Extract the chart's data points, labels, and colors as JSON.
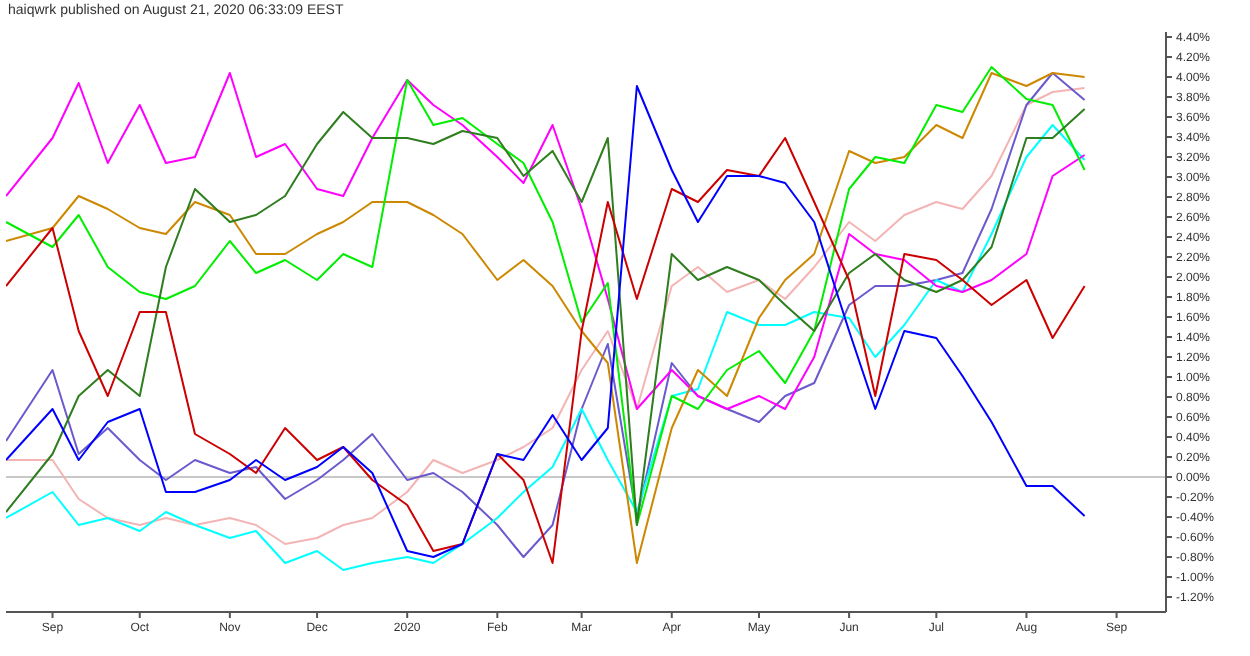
{
  "chart_data": {
    "type": "line",
    "title": "haiqwrk published on August 21, 2020 06:33:09 EEST",
    "x": [
      "2019-08-16",
      "2019-09-01",
      "2019-09-10",
      "2019-09-20",
      "2019-10-01",
      "2019-10-10",
      "2019-10-20",
      "2019-11-01",
      "2019-11-10",
      "2019-11-20",
      "2019-12-01",
      "2019-12-10",
      "2019-12-20",
      "2020-01-01",
      "2020-01-10",
      "2020-01-20",
      "2020-02-01",
      "2020-02-10",
      "2020-02-20",
      "2020-03-01",
      "2020-03-10",
      "2020-03-20",
      "2020-04-01",
      "2020-04-10",
      "2020-04-20",
      "2020-05-01",
      "2020-05-10",
      "2020-05-20",
      "2020-06-01",
      "2020-06-10",
      "2020-06-20",
      "2020-07-01",
      "2020-07-10",
      "2020-07-20",
      "2020-08-01",
      "2020-08-10",
      "2020-08-21"
    ],
    "series": [
      {
        "color": "#f4b4b4",
        "values": [
          0.17,
          0.17,
          -0.22,
          -0.41,
          -0.48,
          -0.41,
          -0.48,
          -0.41,
          -0.48,
          -0.67,
          -0.61,
          -0.48,
          -0.41,
          -0.15,
          0.17,
          0.04,
          0.17,
          0.3,
          0.49,
          1.07,
          1.46,
          0.68,
          1.91,
          2.1,
          1.85,
          1.97,
          1.78,
          2.1,
          2.55,
          2.36,
          2.62,
          2.75,
          2.68,
          3.01,
          3.72,
          3.85,
          3.89
        ]
      },
      {
        "color": "#6a5acd",
        "values": [
          0.36,
          1.07,
          0.23,
          0.49,
          0.17,
          -0.03,
          0.17,
          0.04,
          0.1,
          -0.22,
          -0.03,
          0.17,
          0.43,
          -0.03,
          0.04,
          -0.15,
          -0.48,
          -0.8,
          -0.48,
          0.68,
          1.33,
          -0.41,
          1.14,
          0.81,
          0.68,
          0.55,
          0.81,
          0.94,
          1.72,
          1.91,
          1.91,
          1.97,
          2.04,
          2.68,
          3.72,
          4.04,
          3.77
        ]
      },
      {
        "color": "#00ffff",
        "values": [
          -0.41,
          -0.15,
          -0.48,
          -0.41,
          -0.54,
          -0.35,
          -0.48,
          -0.61,
          -0.54,
          -0.86,
          -0.74,
          -0.93,
          -0.86,
          -0.8,
          -0.86,
          -0.67,
          -0.41,
          -0.15,
          0.1,
          0.68,
          0.17,
          -0.35,
          0.81,
          0.88,
          1.65,
          1.52,
          1.52,
          1.65,
          1.59,
          1.2,
          1.52,
          1.97,
          1.85,
          2.43,
          3.2,
          3.52,
          3.17
        ]
      },
      {
        "color": "#ff00ff",
        "values": [
          2.81,
          3.39,
          3.94,
          3.14,
          3.72,
          3.14,
          3.2,
          4.04,
          3.2,
          3.33,
          2.88,
          2.81,
          3.39,
          3.97,
          3.72,
          3.52,
          3.2,
          2.94,
          3.52,
          2.68,
          1.78,
          0.68,
          1.07,
          0.81,
          0.68,
          0.81,
          0.68,
          1.2,
          2.43,
          2.23,
          2.17,
          1.91,
          1.85,
          1.97,
          2.23,
          3.01,
          3.22
        ]
      },
      {
        "color": "#cc8800",
        "values": [
          2.36,
          2.49,
          2.81,
          2.68,
          2.49,
          2.43,
          2.75,
          2.62,
          2.23,
          2.23,
          2.43,
          2.55,
          2.75,
          2.75,
          2.62,
          2.43,
          1.97,
          2.17,
          1.91,
          1.46,
          1.14,
          -0.86,
          0.49,
          1.07,
          0.81,
          1.59,
          1.97,
          2.23,
          3.26,
          3.14,
          3.2,
          3.52,
          3.39,
          4.04,
          3.91,
          4.04,
          4.0
        ]
      },
      {
        "color": "#00ee00",
        "values": [
          2.55,
          2.3,
          2.62,
          2.1,
          1.85,
          1.78,
          1.91,
          2.36,
          2.04,
          2.17,
          1.97,
          2.23,
          2.1,
          3.97,
          3.52,
          3.59,
          3.33,
          3.14,
          2.55,
          1.55,
          1.94,
          -0.48,
          0.81,
          0.68,
          1.07,
          1.26,
          0.94,
          1.46,
          2.88,
          3.2,
          3.14,
          3.72,
          3.65,
          4.1,
          3.78,
          3.72,
          3.07
        ]
      },
      {
        "color": "#2e7d1e",
        "values": [
          -0.35,
          0.23,
          0.81,
          1.07,
          0.81,
          2.1,
          2.88,
          2.55,
          2.62,
          2.81,
          3.33,
          3.65,
          3.39,
          3.39,
          3.33,
          3.46,
          3.39,
          3.01,
          3.26,
          2.75,
          3.39,
          -0.48,
          2.23,
          1.97,
          2.1,
          1.97,
          1.72,
          1.46,
          2.04,
          2.23,
          1.97,
          1.85,
          1.97,
          2.3,
          3.39,
          3.39,
          3.68
        ]
      },
      {
        "color": "#cc0000",
        "values": [
          1.91,
          2.49,
          1.46,
          0.81,
          1.65,
          1.65,
          0.43,
          0.23,
          0.04,
          0.49,
          0.17,
          0.3,
          -0.03,
          -0.28,
          -0.74,
          -0.67,
          0.23,
          -0.03,
          -0.86,
          1.46,
          2.75,
          1.78,
          2.88,
          2.75,
          3.07,
          3.01,
          3.39,
          2.75,
          1.97,
          0.81,
          2.23,
          2.17,
          1.97,
          1.72,
          1.97,
          1.39,
          1.91
        ]
      },
      {
        "color": "#0000ff",
        "values": [
          0.17,
          0.68,
          0.17,
          0.55,
          0.68,
          -0.15,
          -0.15,
          -0.03,
          0.17,
          -0.03,
          0.1,
          0.3,
          0.04,
          -0.74,
          -0.8,
          -0.67,
          0.23,
          0.17,
          0.62,
          0.17,
          0.49,
          3.91,
          3.07,
          2.55,
          3.01,
          3.01,
          2.94,
          2.55,
          1.46,
          0.68,
          1.46,
          1.39,
          1.01,
          0.55,
          -0.09,
          -0.09,
          -0.39
        ]
      }
    ],
    "xlim": [
      "2019-08-16",
      "2020-09-18"
    ],
    "xticks": [
      {
        "value": "2019-09-01",
        "label": "Sep"
      },
      {
        "value": "2019-10-01",
        "label": "Oct"
      },
      {
        "value": "2019-11-01",
        "label": "Nov"
      },
      {
        "value": "2019-12-01",
        "label": "Dec"
      },
      {
        "value": "2020-01-01",
        "label": "2020"
      },
      {
        "value": "2020-02-01",
        "label": "Feb"
      },
      {
        "value": "2020-03-01",
        "label": "Mar"
      },
      {
        "value": "2020-04-01",
        "label": "Apr"
      },
      {
        "value": "2020-05-01",
        "label": "May"
      },
      {
        "value": "2020-06-01",
        "label": "Jun"
      },
      {
        "value": "2020-07-01",
        "label": "Jul"
      },
      {
        "value": "2020-08-01",
        "label": "Aug"
      },
      {
        "value": "2020-09-01",
        "label": "Sep"
      }
    ],
    "ylim": [
      -1.35,
      4.45
    ],
    "yticks": [
      {
        "value": -1.2,
        "label": "-1.20%"
      },
      {
        "value": -1.0,
        "label": "-1.00%"
      },
      {
        "value": -0.8,
        "label": "-0.80%"
      },
      {
        "value": -0.6,
        "label": "-0.60%"
      },
      {
        "value": -0.4,
        "label": "-0.40%"
      },
      {
        "value": -0.2,
        "label": "-0.20%"
      },
      {
        "value": 0,
        "label": "0.00%"
      },
      {
        "value": 0.2,
        "label": "0.20%"
      },
      {
        "value": 0.4,
        "label": "0.40%"
      },
      {
        "value": 0.6,
        "label": "0.60%"
      },
      {
        "value": 0.8,
        "label": "0.80%"
      },
      {
        "value": 1.0,
        "label": "1.00%"
      },
      {
        "value": 1.2,
        "label": "1.20%"
      },
      {
        "value": 1.4,
        "label": "1.40%"
      },
      {
        "value": 1.6,
        "label": "1.60%"
      },
      {
        "value": 1.8,
        "label": "1.80%"
      },
      {
        "value": 2.0,
        "label": "2.00%"
      },
      {
        "value": 2.2,
        "label": "2.20%"
      },
      {
        "value": 2.4,
        "label": "2.40%"
      },
      {
        "value": 2.6,
        "label": "2.60%"
      },
      {
        "value": 2.8,
        "label": "2.80%"
      },
      {
        "value": 3.0,
        "label": "3.00%"
      },
      {
        "value": 3.2,
        "label": "3.20%"
      },
      {
        "value": 3.4,
        "label": "3.40%"
      },
      {
        "value": 3.6,
        "label": "3.60%"
      },
      {
        "value": 3.8,
        "label": "3.80%"
      },
      {
        "value": 4.0,
        "label": "4.00%"
      },
      {
        "value": 4.2,
        "label": "4.20%"
      },
      {
        "value": 4.4,
        "label": "4.40%"
      }
    ],
    "ref_lines": [
      {
        "axis": "y",
        "value": 0,
        "color": "#c8c8c8"
      }
    ],
    "grid": false,
    "legend": false
  }
}
